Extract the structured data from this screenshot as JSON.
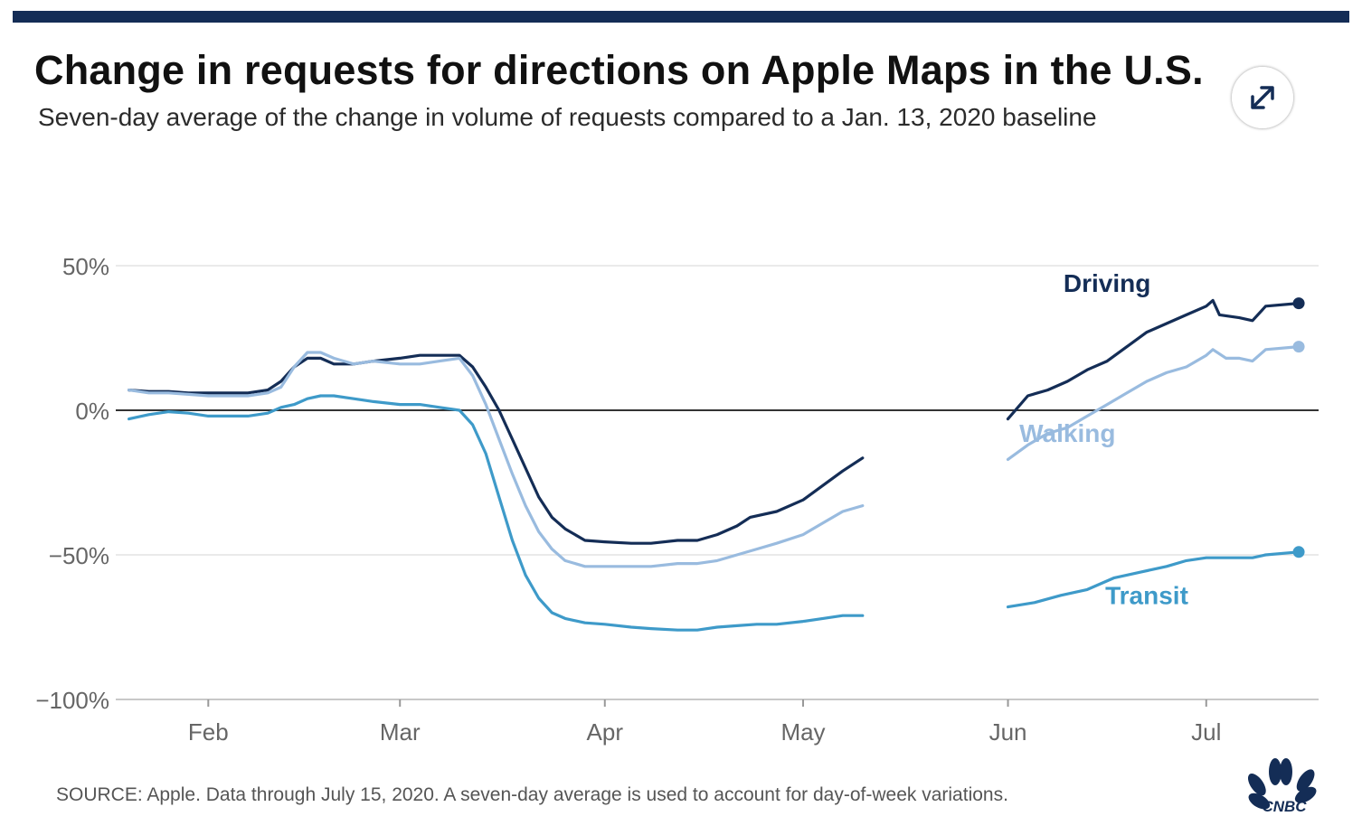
{
  "header": {
    "title": "Change in requests for directions on Apple Maps in the U.S.",
    "subtitle": "Seven-day average of the change in volume of requests compared to a Jan. 13, 2020 baseline"
  },
  "footer": {
    "source": "SOURCE: Apple. Data through July 15, 2020. A seven-day average is used to account for day-of-week variations.",
    "logo_text": "CNBC"
  },
  "controls": {
    "expand_icon": "expand-arrows-icon"
  },
  "colors": {
    "driving": "#142d56",
    "walking": "#99bbdf",
    "transit": "#3e9ac9",
    "zero_line": "#333333",
    "grid": "#e3e3e3"
  },
  "chart_data": {
    "type": "line",
    "x_unit": "date (2020)",
    "ylim": [
      -100,
      50
    ],
    "yticks": [
      50,
      0,
      -50,
      -100
    ],
    "ytick_labels": [
      "50%",
      "0%",
      "−50%",
      "−100%"
    ],
    "xticks": [
      "2020-02-01",
      "2020-03-01",
      "2020-04-01",
      "2020-05-01",
      "2020-06-01",
      "2020-07-01"
    ],
    "xtick_labels": [
      "Feb",
      "Mar",
      "Apr",
      "May",
      "Jun",
      "Jul"
    ],
    "xlim": [
      "2020-01-18",
      "2020-07-18"
    ],
    "grid": true,
    "gap": [
      "2020-05-10",
      "2020-06-01"
    ],
    "series": [
      {
        "name": "Driving",
        "color_key": "driving",
        "label_date": "2020-06-16",
        "label_value": 41,
        "segments": [
          [
            [
              "2020-01-20",
              7
            ],
            [
              "2020-01-23",
              6.5
            ],
            [
              "2020-01-26",
              6.5
            ],
            [
              "2020-01-29",
              6
            ],
            [
              "2020-02-01",
              6
            ],
            [
              "2020-02-04",
              6
            ],
            [
              "2020-02-07",
              6
            ],
            [
              "2020-02-10",
              7
            ],
            [
              "2020-02-12",
              10
            ],
            [
              "2020-02-14",
              15
            ],
            [
              "2020-02-16",
              18
            ],
            [
              "2020-02-18",
              18
            ],
            [
              "2020-02-20",
              16
            ],
            [
              "2020-02-23",
              16
            ],
            [
              "2020-02-26",
              17
            ],
            [
              "2020-03-01",
              18
            ],
            [
              "2020-03-04",
              19
            ],
            [
              "2020-03-07",
              19
            ],
            [
              "2020-03-10",
              19
            ],
            [
              "2020-03-12",
              15
            ],
            [
              "2020-03-14",
              8
            ],
            [
              "2020-03-16",
              0
            ],
            [
              "2020-03-18",
              -10
            ],
            [
              "2020-03-20",
              -20
            ],
            [
              "2020-03-22",
              -30
            ],
            [
              "2020-03-24",
              -37
            ],
            [
              "2020-03-26",
              -41
            ],
            [
              "2020-03-29",
              -45
            ],
            [
              "2020-04-01",
              -45.5
            ],
            [
              "2020-04-05",
              -46
            ],
            [
              "2020-04-08",
              -46
            ],
            [
              "2020-04-12",
              -45
            ],
            [
              "2020-04-15",
              -45
            ],
            [
              "2020-04-18",
              -43
            ],
            [
              "2020-04-21",
              -40
            ],
            [
              "2020-04-23",
              -37
            ],
            [
              "2020-04-27",
              -35
            ],
            [
              "2020-05-01",
              -31
            ],
            [
              "2020-05-04",
              -26
            ],
            [
              "2020-05-07",
              -21
            ],
            [
              "2020-05-10",
              -16.5
            ]
          ],
          [
            [
              "2020-06-01",
              -3
            ],
            [
              "2020-06-04",
              5
            ],
            [
              "2020-06-07",
              7
            ],
            [
              "2020-06-10",
              10
            ],
            [
              "2020-06-13",
              14
            ],
            [
              "2020-06-16",
              17
            ],
            [
              "2020-06-19",
              22
            ],
            [
              "2020-06-22",
              27
            ],
            [
              "2020-06-25",
              30
            ],
            [
              "2020-06-28",
              33
            ],
            [
              "2020-07-01",
              36
            ],
            [
              "2020-07-02",
              38
            ],
            [
              "2020-07-03",
              33
            ],
            [
              "2020-07-06",
              32
            ],
            [
              "2020-07-08",
              31
            ],
            [
              "2020-07-10",
              36
            ],
            [
              "2020-07-15",
              37
            ]
          ]
        ]
      },
      {
        "name": "Walking",
        "color_key": "walking",
        "label_date": "2020-06-10",
        "label_value": -11,
        "segments": [
          [
            [
              "2020-01-20",
              7
            ],
            [
              "2020-01-23",
              6
            ],
            [
              "2020-01-26",
              6
            ],
            [
              "2020-01-29",
              5.5
            ],
            [
              "2020-02-01",
              5
            ],
            [
              "2020-02-04",
              5
            ],
            [
              "2020-02-07",
              5
            ],
            [
              "2020-02-10",
              6
            ],
            [
              "2020-02-12",
              8
            ],
            [
              "2020-02-14",
              15
            ],
            [
              "2020-02-16",
              20
            ],
            [
              "2020-02-18",
              20
            ],
            [
              "2020-02-20",
              18
            ],
            [
              "2020-02-23",
              16
            ],
            [
              "2020-02-26",
              17
            ],
            [
              "2020-03-01",
              16
            ],
            [
              "2020-03-04",
              16
            ],
            [
              "2020-03-07",
              17
            ],
            [
              "2020-03-10",
              18
            ],
            [
              "2020-03-12",
              12
            ],
            [
              "2020-03-14",
              2
            ],
            [
              "2020-03-16",
              -10
            ],
            [
              "2020-03-18",
              -22
            ],
            [
              "2020-03-20",
              -33
            ],
            [
              "2020-03-22",
              -42
            ],
            [
              "2020-03-24",
              -48
            ],
            [
              "2020-03-26",
              -52
            ],
            [
              "2020-03-29",
              -54
            ],
            [
              "2020-04-01",
              -54
            ],
            [
              "2020-04-05",
              -54
            ],
            [
              "2020-04-08",
              -54
            ],
            [
              "2020-04-12",
              -53
            ],
            [
              "2020-04-15",
              -53
            ],
            [
              "2020-04-18",
              -52
            ],
            [
              "2020-04-21",
              -50
            ],
            [
              "2020-04-24",
              -48
            ],
            [
              "2020-04-27",
              -46
            ],
            [
              "2020-05-01",
              -43
            ],
            [
              "2020-05-04",
              -39
            ],
            [
              "2020-05-07",
              -35
            ],
            [
              "2020-05-10",
              -33
            ]
          ],
          [
            [
              "2020-06-01",
              -17
            ],
            [
              "2020-06-04",
              -12
            ],
            [
              "2020-06-07",
              -8
            ],
            [
              "2020-06-10",
              -6
            ],
            [
              "2020-06-13",
              -2
            ],
            [
              "2020-06-16",
              2
            ],
            [
              "2020-06-19",
              6
            ],
            [
              "2020-06-22",
              10
            ],
            [
              "2020-06-25",
              13
            ],
            [
              "2020-06-28",
              15
            ],
            [
              "2020-07-01",
              19
            ],
            [
              "2020-07-02",
              21
            ],
            [
              "2020-07-04",
              18
            ],
            [
              "2020-07-06",
              18
            ],
            [
              "2020-07-08",
              17
            ],
            [
              "2020-07-10",
              21
            ],
            [
              "2020-07-15",
              22
            ]
          ]
        ]
      },
      {
        "name": "Transit",
        "color_key": "transit",
        "label_date": "2020-06-22",
        "label_value": -67,
        "segments": [
          [
            [
              "2020-01-20",
              -3
            ],
            [
              "2020-01-23",
              -1.5
            ],
            [
              "2020-01-26",
              -0.5
            ],
            [
              "2020-01-29",
              -1
            ],
            [
              "2020-02-01",
              -2
            ],
            [
              "2020-02-04",
              -2
            ],
            [
              "2020-02-07",
              -2
            ],
            [
              "2020-02-10",
              -1
            ],
            [
              "2020-02-12",
              1
            ],
            [
              "2020-02-14",
              2
            ],
            [
              "2020-02-16",
              4
            ],
            [
              "2020-02-18",
              5
            ],
            [
              "2020-02-20",
              5
            ],
            [
              "2020-02-23",
              4
            ],
            [
              "2020-02-26",
              3
            ],
            [
              "2020-03-01",
              2
            ],
            [
              "2020-03-04",
              2
            ],
            [
              "2020-03-07",
              1
            ],
            [
              "2020-03-10",
              0
            ],
            [
              "2020-03-12",
              -5
            ],
            [
              "2020-03-14",
              -15
            ],
            [
              "2020-03-16",
              -30
            ],
            [
              "2020-03-18",
              -45
            ],
            [
              "2020-03-20",
              -57
            ],
            [
              "2020-03-22",
              -65
            ],
            [
              "2020-03-24",
              -70
            ],
            [
              "2020-03-26",
              -72
            ],
            [
              "2020-03-29",
              -73.5
            ],
            [
              "2020-04-01",
              -74
            ],
            [
              "2020-04-05",
              -75
            ],
            [
              "2020-04-08",
              -75.5
            ],
            [
              "2020-04-12",
              -76
            ],
            [
              "2020-04-15",
              -76
            ],
            [
              "2020-04-18",
              -75
            ],
            [
              "2020-04-21",
              -74.5
            ],
            [
              "2020-04-24",
              -74
            ],
            [
              "2020-04-27",
              -74
            ],
            [
              "2020-05-01",
              -73
            ],
            [
              "2020-05-04",
              -72
            ],
            [
              "2020-05-07",
              -71
            ],
            [
              "2020-05-10",
              -71
            ]
          ],
          [
            [
              "2020-06-01",
              -68
            ],
            [
              "2020-06-05",
              -66.5
            ],
            [
              "2020-06-09",
              -64
            ],
            [
              "2020-06-13",
              -62
            ],
            [
              "2020-06-17",
              -58
            ],
            [
              "2020-06-21",
              -56
            ],
            [
              "2020-06-25",
              -54
            ],
            [
              "2020-06-28",
              -52
            ],
            [
              "2020-07-01",
              -51
            ],
            [
              "2020-07-04",
              -51
            ],
            [
              "2020-07-08",
              -51
            ],
            [
              "2020-07-10",
              -50
            ],
            [
              "2020-07-15",
              -49
            ]
          ]
        ]
      }
    ]
  }
}
